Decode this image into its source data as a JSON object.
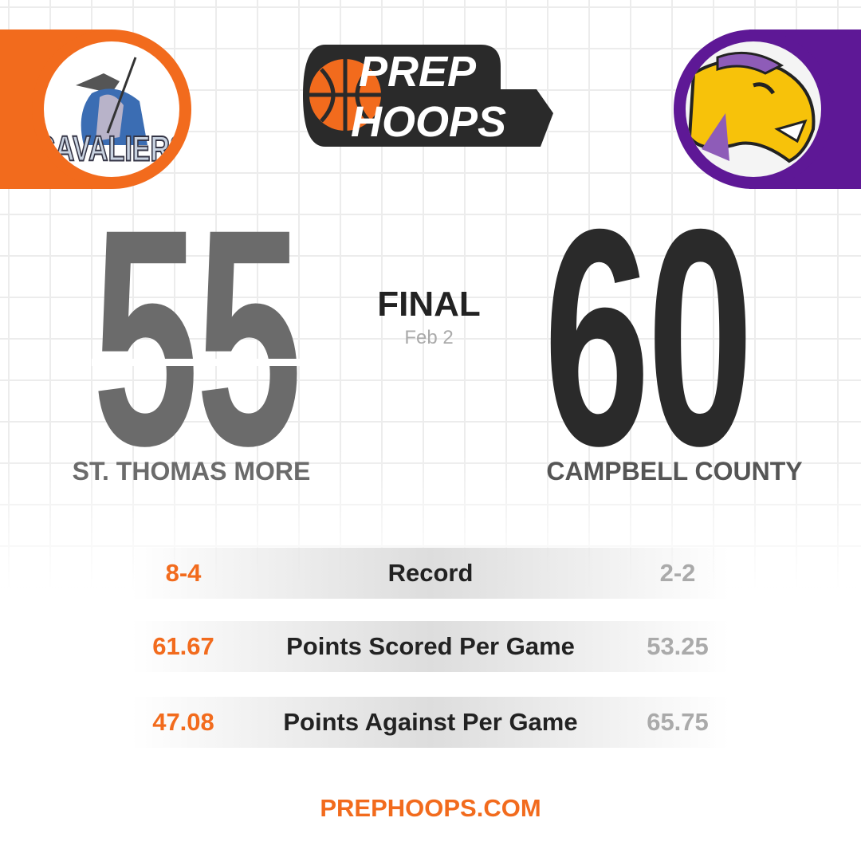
{
  "brand": {
    "logo_line1": "PREP",
    "logo_line2": "HOOPS",
    "website": "PREPHOOPS.COM",
    "colors": {
      "orange": "#f26b1d",
      "purple": "#5e1896",
      "dark": "#2a2a2a"
    }
  },
  "home": {
    "name": "ST. THOMAS MORE",
    "score": "55",
    "logo_text": "CAVALIERS",
    "color": "#6b6b6b"
  },
  "away": {
    "name": "CAMPBELL COUNTY",
    "score": "60",
    "color": "#2a2a2a"
  },
  "status": {
    "label": "FINAL",
    "date": "Feb 2"
  },
  "stats": [
    {
      "home": "8-4",
      "label": "Record",
      "away": "2-2"
    },
    {
      "home": "61.67",
      "label": "Points Scored Per Game",
      "away": "53.25"
    },
    {
      "home": "47.08",
      "label": "Points Against Per Game",
      "away": "65.75"
    }
  ]
}
